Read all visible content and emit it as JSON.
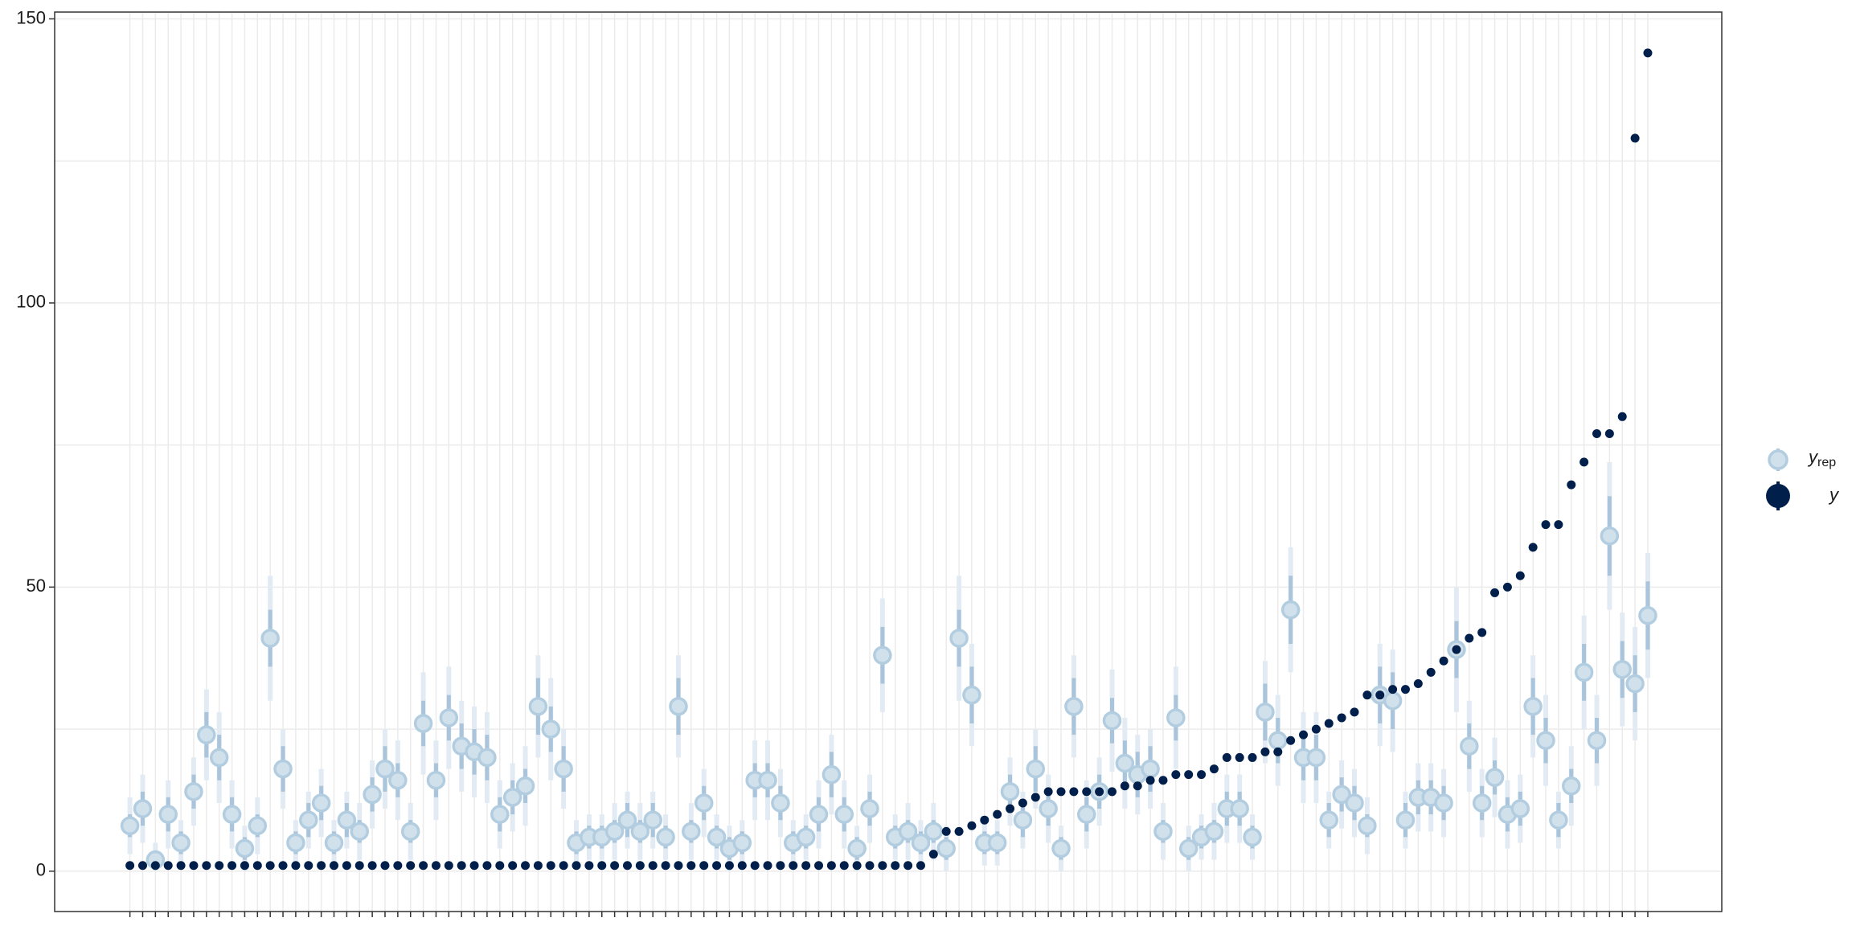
{
  "chart_data": {
    "type": "intervals",
    "x": [
      1,
      2,
      3,
      4,
      5,
      6,
      7,
      8,
      9,
      10,
      11,
      12,
      13,
      14,
      15,
      16,
      17,
      18,
      19,
      20,
      21,
      22,
      23,
      24,
      25,
      26,
      27,
      28,
      29,
      30,
      31,
      32,
      33,
      34,
      35,
      36,
      37,
      38,
      39,
      40,
      41,
      42,
      43,
      44,
      45,
      46,
      47,
      48,
      49,
      50,
      51,
      52,
      53,
      54,
      55,
      56,
      57,
      58,
      59,
      60,
      61,
      62,
      63,
      64,
      65,
      66,
      67,
      68,
      69,
      70,
      71,
      72,
      73,
      74,
      75,
      76,
      77,
      78,
      79,
      80,
      81,
      82,
      83,
      84,
      85,
      86,
      87,
      88,
      89,
      90,
      91,
      92,
      93,
      94,
      95,
      96,
      97,
      98,
      99,
      100,
      101,
      102,
      103,
      104,
      105,
      106,
      107,
      108,
      109,
      110,
      111,
      112,
      113,
      114,
      115,
      116,
      117,
      118,
      119,
      120
    ],
    "xlim": [
      -4.9,
      125.8
    ],
    "ylim": [
      -7.1,
      151.2
    ],
    "yticks": [
      0,
      50,
      100,
      150
    ],
    "minor_yticks": [
      25,
      75,
      125
    ],
    "grid": true,
    "legend": "right",
    "series": [
      {
        "name": "y",
        "subscript": "rep",
        "color": "#d1e1ec",
        "outline": "#b3cde0",
        "inner_color": "#a9c4db",
        "outer_color": "#e2ebf3",
        "values": [
          8,
          11,
          2,
          10,
          5,
          14,
          24,
          20,
          10,
          4,
          8,
          41,
          18,
          5,
          9,
          12,
          5,
          9,
          7,
          13.5,
          18,
          16,
          7,
          26,
          16,
          27,
          22,
          21,
          20,
          10,
          13,
          15,
          29,
          25,
          18,
          5,
          6,
          6,
          7,
          9,
          7,
          9,
          6,
          29,
          7,
          12,
          6,
          4,
          5,
          16,
          16,
          12,
          5,
          6,
          10,
          17,
          10,
          4,
          11,
          38,
          6,
          7,
          5,
          7,
          4,
          41,
          31,
          5,
          5,
          14,
          9,
          18,
          11,
          4,
          29,
          10,
          14,
          26.5,
          19,
          17,
          18,
          7,
          27,
          4,
          6,
          7,
          11,
          11,
          6,
          28,
          23,
          46,
          20,
          20,
          9,
          13.5,
          12,
          8,
          31,
          30,
          9,
          13,
          13,
          12,
          39,
          22,
          12,
          16.5,
          10,
          11,
          29,
          23,
          9,
          15,
          35,
          23,
          59,
          35.5,
          33,
          45
        ],
        "inner_low": [
          6,
          8,
          1,
          7,
          3,
          11,
          20,
          16,
          7,
          2,
          6,
          36,
          14,
          3,
          6,
          9,
          3,
          6,
          5,
          10.5,
          14,
          13,
          5,
          22,
          13,
          23,
          18,
          17,
          16,
          7,
          10,
          12,
          24,
          21,
          14,
          3,
          4,
          4,
          5,
          6,
          5,
          6,
          4,
          24,
          5,
          9,
          4,
          2,
          3,
          13,
          13,
          9,
          3,
          4,
          7,
          13,
          7,
          2,
          8,
          33,
          4,
          5,
          3,
          5,
          2,
          36,
          26,
          3,
          3,
          11,
          6,
          14,
          8,
          2,
          24,
          7,
          11,
          22.5,
          15,
          13,
          14,
          5,
          23,
          2,
          4,
          5,
          8,
          8,
          4,
          23,
          19,
          40,
          16,
          16,
          6,
          10.5,
          9,
          6,
          26,
          25,
          6,
          10,
          10,
          9,
          34,
          18,
          9,
          13.5,
          7,
          8,
          24,
          19,
          6,
          12,
          30,
          19,
          52,
          30.5,
          28,
          39
        ],
        "inner_high": [
          10,
          14,
          3,
          13,
          7,
          17,
          28,
          24,
          13,
          6,
          10,
          46,
          22,
          7,
          12,
          15,
          7,
          12,
          9,
          16.5,
          22,
          19,
          9,
          30,
          19,
          31,
          26,
          25,
          24,
          13,
          16,
          18,
          34,
          29,
          22,
          7,
          8,
          8,
          9,
          12,
          9,
          12,
          8,
          34,
          9,
          15,
          8,
          6,
          7,
          19,
          19,
          15,
          7,
          8,
          13,
          21,
          13,
          6,
          14,
          43,
          8,
          9,
          7,
          9,
          6,
          46,
          36,
          7,
          7,
          17,
          12,
          22,
          14,
          6,
          34,
          13,
          17,
          30.5,
          23,
          21,
          22,
          9,
          31,
          6,
          8,
          9,
          14,
          14,
          8,
          33,
          27,
          52,
          24,
          24,
          12,
          16.5,
          15,
          10,
          36,
          35,
          12,
          16,
          16,
          15,
          44,
          26,
          15,
          19.5,
          13,
          14,
          34,
          27,
          12,
          18,
          40,
          27,
          66,
          40.5,
          38,
          51
        ],
        "outer_low": [
          3,
          5,
          0,
          4,
          1,
          8,
          16,
          12,
          4,
          0,
          3,
          30,
          11,
          1,
          4,
          6,
          1,
          4,
          2,
          7.5,
          11,
          9,
          2,
          17,
          9,
          18,
          14,
          13,
          12,
          4,
          7,
          8,
          20,
          16,
          11,
          1,
          2,
          2,
          2,
          4,
          2,
          4,
          2,
          20,
          2,
          6,
          2,
          0,
          1,
          9,
          9,
          6,
          1,
          2,
          4,
          10,
          4,
          0,
          5,
          28,
          2,
          2,
          1,
          2,
          0,
          30,
          22,
          1,
          1,
          8,
          4,
          11,
          5,
          0,
          20,
          4,
          8,
          17.5,
          11,
          10,
          11,
          2,
          18,
          0,
          2,
          2,
          5,
          5,
          2,
          19,
          15,
          35,
          12,
          12,
          4,
          7.5,
          6,
          3,
          22,
          21,
          4,
          7,
          7,
          6,
          28,
          14,
          6,
          9.5,
          4,
          5,
          20,
          15,
          4,
          8,
          25,
          15,
          46,
          25.5,
          23,
          34
        ],
        "outer_high": [
          13,
          17,
          5,
          16,
          9,
          20,
          32,
          28,
          16,
          8,
          13,
          52,
          25,
          9,
          14,
          18,
          9,
          14,
          12,
          19.5,
          25,
          23,
          12,
          35,
          23,
          36,
          30,
          29,
          28,
          16,
          19,
          22,
          38,
          34,
          25,
          9,
          10,
          10,
          12,
          14,
          12,
          14,
          10,
          38,
          12,
          18,
          10,
          8,
          9,
          23,
          23,
          18,
          9,
          10,
          16,
          24,
          16,
          8,
          17,
          48,
          10,
          12,
          9,
          12,
          8,
          52,
          40,
          9,
          9,
          20,
          14,
          25,
          17,
          8,
          38,
          16,
          20,
          35.5,
          27,
          24,
          25,
          12,
          36,
          8,
          10,
          12,
          17,
          17,
          10,
          37,
          31,
          57,
          28,
          28,
          14,
          19.5,
          18,
          13,
          40,
          39,
          14,
          19,
          19,
          18,
          50,
          30,
          18,
          23.5,
          16,
          17,
          38,
          31,
          14,
          22,
          45,
          31,
          72,
          45.5,
          43,
          56
        ]
      },
      {
        "name": "y",
        "color": "#011f4b",
        "values": [
          1,
          1,
          1,
          1,
          1,
          1,
          1,
          1,
          1,
          1,
          1,
          1,
          1,
          1,
          1,
          1,
          1,
          1,
          1,
          1,
          1,
          1,
          1,
          1,
          1,
          1,
          1,
          1,
          1,
          1,
          1,
          1,
          1,
          1,
          1,
          1,
          1,
          1,
          1,
          1,
          1,
          1,
          1,
          1,
          1,
          1,
          1,
          1,
          1,
          1,
          1,
          1,
          1,
          1,
          1,
          1,
          1,
          1,
          1,
          1,
          1,
          1,
          1,
          3,
          7,
          7,
          8,
          9,
          10,
          11,
          12,
          13,
          14,
          14,
          14,
          14,
          14,
          14,
          15,
          15,
          16,
          16,
          17,
          17,
          17,
          18,
          20,
          20,
          20,
          21,
          21,
          23,
          24,
          25,
          26,
          27,
          28,
          31,
          31,
          32,
          32,
          33,
          35,
          37,
          39,
          41,
          42,
          49,
          50,
          52,
          57,
          61,
          61,
          68,
          72,
          77,
          77,
          80,
          129,
          144
        ]
      }
    ]
  }
}
